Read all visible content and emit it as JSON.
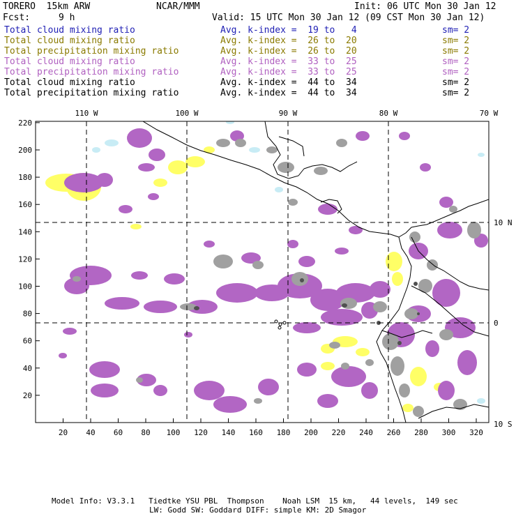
{
  "header": {
    "model": "TORERO  15km ARW",
    "org": "NCAR/MMM",
    "init": "Init: 06 UTC Mon 30 Jan 12",
    "fcst_label": "Fcst:",
    "fcst_value": "9 h",
    "valid": "Valid: 15 UTC Mon 30 Jan 12 (09 CST Mon 30 Jan 12)"
  },
  "legend": [
    {
      "name": "Total cloud mixing ratio",
      "kindex": "Avg. k-index =  19 to   4",
      "sm": "sm= 2",
      "color": "#1f1fb4"
    },
    {
      "name": "Total cloud mixing ratio",
      "kindex": "Avg. k-index =  26 to  20",
      "sm": "sm= 2",
      "color": "#8a7a00"
    },
    {
      "name": "Total precipitation mixing ratio",
      "kindex": "Avg. k-index =  26 to  20",
      "sm": "sm= 2",
      "color": "#8a7a00"
    },
    {
      "name": "Total cloud mixing ratio",
      "kindex": "Avg. k-index =  33 to  25",
      "sm": "sm= 2",
      "color": "#b060c0"
    },
    {
      "name": "Total precipitation mixing ratio",
      "kindex": "Avg. k-index =  33 to  25",
      "sm": "sm= 2",
      "color": "#b060c0"
    },
    {
      "name": "Total cloud mixing ratio",
      "kindex": "Avg. k-index =  44 to  34",
      "sm": "sm= 2",
      "color": "#000000"
    },
    {
      "name": "Total precipitation mixing ratio",
      "kindex": "Avg. k-index =  44 to  34",
      "sm": "sm= 2",
      "color": "#000000"
    }
  ],
  "map": {
    "top_lon_labels": [
      "110 W",
      "100 W",
      "90 W",
      "80 W",
      "70 W"
    ],
    "right_lat_labels": [
      "10 N",
      "0",
      "10 S"
    ],
    "x_ticks": [
      "20",
      "40",
      "60",
      "80",
      "100",
      "120",
      "140",
      "160",
      "180",
      "200",
      "220",
      "240",
      "260",
      "280",
      "300",
      "320"
    ],
    "y_ticks": [
      "20",
      "40",
      "60",
      "80",
      "100",
      "120",
      "140",
      "160",
      "180",
      "200",
      "220"
    ],
    "colors": {
      "light_cyan": "#c8ecf5",
      "yellow": "#ffff66",
      "purple": "#b266c4",
      "gray": "#a0a0a0",
      "dark_gray": "#505050"
    }
  },
  "footer": {
    "line1": "Model Info: V3.3.1   Tiedtke YSU PBL  Thompson    Noah LSM  15 km,   44 levels,  149 sec",
    "line2": "LW: Godd SW: Goddard DIFF: simple KM: 2D Smagor"
  }
}
